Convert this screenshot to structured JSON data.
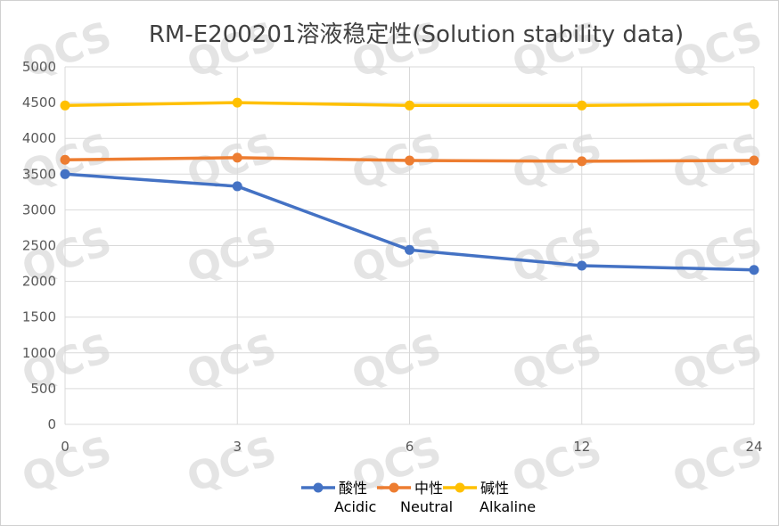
{
  "chart_data": {
    "type": "line",
    "title": "RM-E200201溶液稳定性(Solution stability data)",
    "categories": [
      "0",
      "3",
      "6",
      "12",
      "24"
    ],
    "ylim": [
      0,
      5000
    ],
    "yticks": [
      "0",
      "500",
      "1000",
      "1500",
      "2000",
      "2500",
      "3000",
      "3500",
      "4000",
      "4500",
      "5000"
    ],
    "grid": true,
    "legend_position": "bottom",
    "series": [
      {
        "name": "酸性",
        "name_sub": "Acidic",
        "color": "#4472C4",
        "values": [
          3500,
          3330,
          2440,
          2220,
          2160
        ]
      },
      {
        "name": "中性",
        "name_sub": "Neutral",
        "color": "#ED7D31",
        "values": [
          3700,
          3730,
          3690,
          3680,
          3690
        ]
      },
      {
        "name": "碱性",
        "name_sub": "Alkaline",
        "color": "#FFC000",
        "values": [
          4460,
          4500,
          4460,
          4460,
          4480
        ]
      }
    ]
  },
  "watermark": "QCS"
}
